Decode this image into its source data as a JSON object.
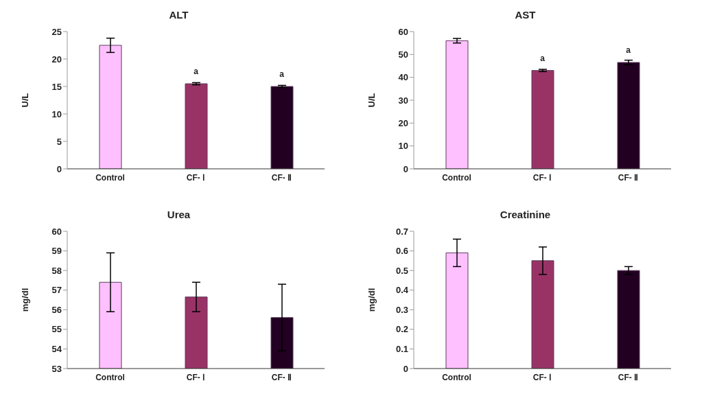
{
  "chart_data": [
    {
      "type": "bar",
      "title": "ALT",
      "ylabel": "U/L",
      "categories": [
        "Control",
        "CF- Ⅰ",
        "CF- Ⅱ"
      ],
      "values": [
        22.5,
        15.5,
        15.0
      ],
      "errors": [
        1.3,
        0.2,
        0.2
      ],
      "colors": [
        "#ffc0ff",
        "#993366",
        "#220022"
      ],
      "ylim": [
        0,
        25
      ],
      "yticks": [
        0,
        5,
        10,
        15,
        20,
        25
      ],
      "grid": false,
      "annotations": [
        {
          "text": "a",
          "x": "CF- Ⅰ",
          "y": 15.5
        },
        {
          "text": "a",
          "x": "CF- Ⅱ",
          "y": 15.0
        }
      ]
    },
    {
      "type": "bar",
      "title": "AST",
      "ylabel": "U/L",
      "categories": [
        "Control",
        "CF- Ⅰ",
        "CF- Ⅱ"
      ],
      "values": [
        56,
        43,
        46.5
      ],
      "errors": [
        1,
        0.5,
        1
      ],
      "colors": [
        "#ffc0ff",
        "#993366",
        "#220022"
      ],
      "ylim": [
        0,
        60
      ],
      "yticks": [
        0,
        10,
        20,
        30,
        40,
        50,
        60
      ],
      "grid": false,
      "annotations": [
        {
          "text": "a",
          "x": "CF- Ⅰ",
          "y": 43
        },
        {
          "text": "a",
          "x": "CF- Ⅱ",
          "y": 46.5
        }
      ]
    },
    {
      "type": "bar",
      "title": "Urea",
      "ylabel": "mg/dl",
      "categories": [
        "Control",
        "CF- Ⅰ",
        "CF- Ⅱ"
      ],
      "values": [
        57.4,
        56.65,
        55.6
      ],
      "errors": [
        1.5,
        0.75,
        1.7
      ],
      "colors": [
        "#ffc0ff",
        "#993366",
        "#220022"
      ],
      "ylim": [
        53,
        60
      ],
      "yticks": [
        53,
        54,
        55,
        56,
        57,
        58,
        59,
        60
      ],
      "grid": false
    },
    {
      "type": "bar",
      "title": "Creatinine",
      "ylabel": "mg/dl",
      "categories": [
        "Control",
        "CF- Ⅰ",
        "CF- Ⅱ"
      ],
      "values": [
        0.59,
        0.55,
        0.5
      ],
      "errors": [
        0.07,
        0.07,
        0.02
      ],
      "colors": [
        "#ffc0ff",
        "#993366",
        "#220022"
      ],
      "ylim": [
        0,
        0.7
      ],
      "yticks": [
        0,
        0.1,
        0.2,
        0.3,
        0.4,
        0.5,
        0.6,
        0.7
      ],
      "grid": false
    }
  ]
}
